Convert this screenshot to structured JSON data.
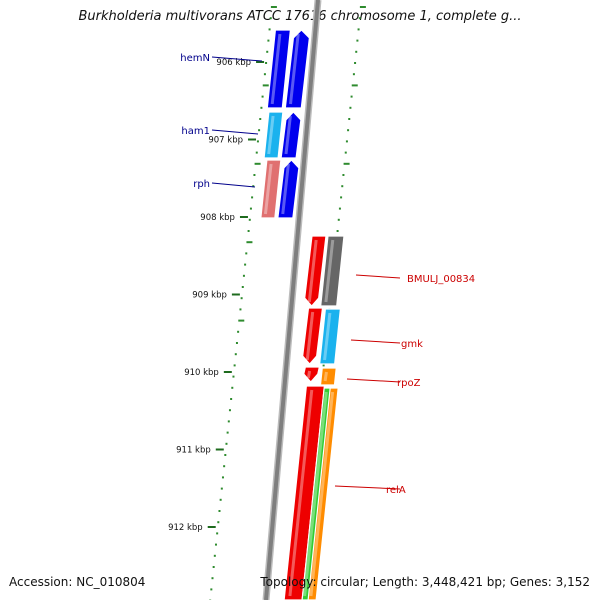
{
  "title": "Burkholderia multivorans ATCC 17616 chromosome 1, complete g...",
  "footer": {
    "accession": "Accession: NC_010804",
    "summary": "Topology: circular; Length: 3,448,421 bp; Genes: 3,152"
  },
  "colors": {
    "backbone": "#7f7f7f",
    "tick_dot": "#2e8b2e",
    "label_forward": "#00008b",
    "label_reverse": "#cc0000"
  },
  "ruler_labels": [
    {
      "kbp": 906,
      "text": "906 kbp"
    },
    {
      "kbp": 907,
      "text": "907 kbp"
    },
    {
      "kbp": 908,
      "text": "908 kbp"
    },
    {
      "kbp": 909,
      "text": "909 kbp"
    },
    {
      "kbp": 910,
      "text": "910 kbp"
    },
    {
      "kbp": 911,
      "text": "911 kbp"
    },
    {
      "kbp": 912,
      "text": "912 kbp"
    }
  ],
  "gene_labels": [
    {
      "name": "hemN",
      "strand": "forward"
    },
    {
      "name": "ham1",
      "strand": "forward"
    },
    {
      "name": "rph",
      "strand": "forward"
    },
    {
      "name": "BMULJ_00834",
      "strand": "reverse"
    },
    {
      "name": "gmk",
      "strand": "reverse"
    },
    {
      "name": "rpoZ",
      "strand": "reverse"
    },
    {
      "name": "relA",
      "strand": "reverse"
    }
  ],
  "features": [
    {
      "name": "hemN-cds",
      "color": "#0000ee"
    },
    {
      "name": "hemN-gene",
      "color": "#0000ee"
    },
    {
      "name": "ham1-cds",
      "color": "#1ab2ee"
    },
    {
      "name": "ham1-gene",
      "color": "#0000ee"
    },
    {
      "name": "rph-cds",
      "color": "#e07070"
    },
    {
      "name": "rph-gene",
      "color": "#0000ee"
    },
    {
      "name": "BMULJ_00834-cds",
      "color": "#666666"
    },
    {
      "name": "BMULJ_00834-gene",
      "color": "#ee0000"
    },
    {
      "name": "gmk-cds",
      "color": "#1ab2ee"
    },
    {
      "name": "gmk-gene",
      "color": "#ee0000"
    },
    {
      "name": "rpoZ-cds",
      "color": "#ff8c00"
    },
    {
      "name": "rpoZ-gene",
      "color": "#ee0000"
    },
    {
      "name": "relA-cds",
      "color": "#ff8c00"
    },
    {
      "name": "relA-misc",
      "color": "#33cc33"
    },
    {
      "name": "relA-gene",
      "color": "#ee0000"
    }
  ]
}
